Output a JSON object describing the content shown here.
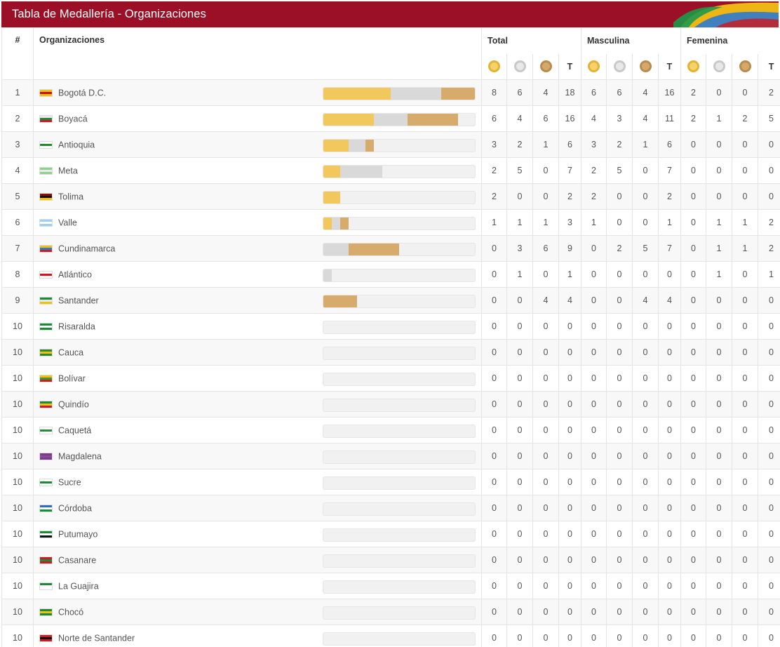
{
  "header": {
    "title": "Tabla de Medallería - Organizaciones"
  },
  "columns": {
    "rank": "#",
    "org": "Organizaciones",
    "groups": [
      "Total",
      "Masculina",
      "Femenina"
    ],
    "total_label": "T",
    "medal_icons": [
      "gold-medal-icon",
      "silver-medal-icon",
      "bronze-medal-icon"
    ]
  },
  "colors": {
    "brand": "#9c1027",
    "gold": "#f2c85c",
    "silver": "#d9d9d9",
    "bronze": "#d7ab6b"
  },
  "bar_max": 18,
  "rows": [
    {
      "rank": "1",
      "name": "Bogotá D.C.",
      "flag": [
        "#f2c014",
        "#c7101b",
        "#f2c014"
      ],
      "total": [
        "8",
        "6",
        "4",
        "18"
      ],
      "masc": [
        "6",
        "6",
        "4",
        "16"
      ],
      "fem": [
        "2",
        "0",
        "0",
        "2"
      ]
    },
    {
      "rank": "2",
      "name": "Boyacá",
      "flag": [
        "#e9e9e9",
        "#1e8a3a",
        "#c81d25"
      ],
      "total": [
        "6",
        "4",
        "6",
        "16"
      ],
      "masc": [
        "4",
        "3",
        "4",
        "11"
      ],
      "fem": [
        "2",
        "1",
        "2",
        "5"
      ]
    },
    {
      "rank": "3",
      "name": "Antioquia",
      "flag": [
        "#ffffff",
        "#1a8f2a",
        "#ffffff"
      ],
      "total": [
        "3",
        "2",
        "1",
        "6"
      ],
      "masc": [
        "3",
        "2",
        "1",
        "6"
      ],
      "fem": [
        "0",
        "0",
        "0",
        "0"
      ]
    },
    {
      "rank": "4",
      "name": "Meta",
      "flag": [
        "#8fcf8f",
        "#eaeaea",
        "#8fcf8f"
      ],
      "total": [
        "2",
        "5",
        "0",
        "7"
      ],
      "masc": [
        "2",
        "5",
        "0",
        "7"
      ],
      "fem": [
        "0",
        "0",
        "0",
        "0"
      ]
    },
    {
      "rank": "5",
      "name": "Tolima",
      "flag": [
        "#8a1010",
        "#111111",
        "#f2c014"
      ],
      "total": [
        "2",
        "0",
        "0",
        "2"
      ],
      "masc": [
        "2",
        "0",
        "0",
        "2"
      ],
      "fem": [
        "0",
        "0",
        "0",
        "0"
      ]
    },
    {
      "rank": "6",
      "name": "Valle",
      "flag": [
        "#9fd0ef",
        "#ffffff",
        "#9fd0ef"
      ],
      "total": [
        "1",
        "1",
        "1",
        "3"
      ],
      "masc": [
        "1",
        "0",
        "0",
        "1"
      ],
      "fem": [
        "0",
        "1",
        "1",
        "2"
      ]
    },
    {
      "rank": "7",
      "name": "Cundinamarca",
      "flag": [
        "#f2c014",
        "#2e7ad1",
        "#c81d25"
      ],
      "total": [
        "0",
        "3",
        "6",
        "9"
      ],
      "masc": [
        "0",
        "2",
        "5",
        "7"
      ],
      "fem": [
        "0",
        "1",
        "1",
        "2"
      ]
    },
    {
      "rank": "8",
      "name": "Atlántico",
      "flag": [
        "#ffffff",
        "#d4141e",
        "#ffffff"
      ],
      "total": [
        "0",
        "1",
        "0",
        "1"
      ],
      "masc": [
        "0",
        "0",
        "0",
        "0"
      ],
      "fem": [
        "0",
        "1",
        "0",
        "1"
      ]
    },
    {
      "rank": "9",
      "name": "Santander",
      "flag": [
        "#1d8a38",
        "#e8e8e8",
        "#f2c014"
      ],
      "total": [
        "0",
        "0",
        "4",
        "4"
      ],
      "masc": [
        "0",
        "0",
        "4",
        "4"
      ],
      "fem": [
        "0",
        "0",
        "0",
        "0"
      ]
    },
    {
      "rank": "10",
      "name": "Risaralda",
      "flag": [
        "#1d8a38",
        "#ffffff",
        "#1d8a38"
      ],
      "total": [
        "0",
        "0",
        "0",
        "0"
      ],
      "masc": [
        "0",
        "0",
        "0",
        "0"
      ],
      "fem": [
        "0",
        "0",
        "0",
        "0"
      ]
    },
    {
      "rank": "10",
      "name": "Cauca",
      "flag": [
        "#2a8a2a",
        "#f2c014",
        "#2a8a2a"
      ],
      "total": [
        "0",
        "0",
        "0",
        "0"
      ],
      "masc": [
        "0",
        "0",
        "0",
        "0"
      ],
      "fem": [
        "0",
        "0",
        "0",
        "0"
      ]
    },
    {
      "rank": "10",
      "name": "Bolívar",
      "flag": [
        "#f2c014",
        "#3e9a2a",
        "#c81d25"
      ],
      "total": [
        "0",
        "0",
        "0",
        "0"
      ],
      "masc": [
        "0",
        "0",
        "0",
        "0"
      ],
      "fem": [
        "0",
        "0",
        "0",
        "0"
      ]
    },
    {
      "rank": "10",
      "name": "Quindío",
      "flag": [
        "#1d8a38",
        "#f2c014",
        "#c81d25"
      ],
      "total": [
        "0",
        "0",
        "0",
        "0"
      ],
      "masc": [
        "0",
        "0",
        "0",
        "0"
      ],
      "fem": [
        "0",
        "0",
        "0",
        "0"
      ]
    },
    {
      "rank": "10",
      "name": "Caquetá",
      "flag": [
        "#ffffff",
        "#2e8a3a",
        "#ffffff"
      ],
      "total": [
        "0",
        "0",
        "0",
        "0"
      ],
      "masc": [
        "0",
        "0",
        "0",
        "0"
      ],
      "fem": [
        "0",
        "0",
        "0",
        "0"
      ]
    },
    {
      "rank": "10",
      "name": "Magdalena",
      "flag": [
        "#7a3b8a",
        "#8a4a9a",
        "#7a3b8a"
      ],
      "total": [
        "0",
        "0",
        "0",
        "0"
      ],
      "masc": [
        "0",
        "0",
        "0",
        "0"
      ],
      "fem": [
        "0",
        "0",
        "0",
        "0"
      ]
    },
    {
      "rank": "10",
      "name": "Sucre",
      "flag": [
        "#ffffff",
        "#1d8a38",
        "#ffffff"
      ],
      "total": [
        "0",
        "0",
        "0",
        "0"
      ],
      "masc": [
        "0",
        "0",
        "0",
        "0"
      ],
      "fem": [
        "0",
        "0",
        "0",
        "0"
      ]
    },
    {
      "rank": "10",
      "name": "Córdoba",
      "flag": [
        "#2e6fb8",
        "#ffffff",
        "#1d8a38"
      ],
      "total": [
        "0",
        "0",
        "0",
        "0"
      ],
      "masc": [
        "0",
        "0",
        "0",
        "0"
      ],
      "fem": [
        "0",
        "0",
        "0",
        "0"
      ]
    },
    {
      "rank": "10",
      "name": "Putumayo",
      "flag": [
        "#1d8a38",
        "#ffffff",
        "#111111"
      ],
      "total": [
        "0",
        "0",
        "0",
        "0"
      ],
      "masc": [
        "0",
        "0",
        "0",
        "0"
      ],
      "fem": [
        "0",
        "0",
        "0",
        "0"
      ]
    },
    {
      "rank": "10",
      "name": "Casanare",
      "flag": [
        "#c81d25",
        "#1d8a38",
        "#c81d25"
      ],
      "total": [
        "0",
        "0",
        "0",
        "0"
      ],
      "masc": [
        "0",
        "0",
        "0",
        "0"
      ],
      "fem": [
        "0",
        "0",
        "0",
        "0"
      ]
    },
    {
      "rank": "10",
      "name": "La Guajira",
      "flag": [
        "#1d8a38",
        "#ffffff",
        "#ffffff"
      ],
      "total": [
        "0",
        "0",
        "0",
        "0"
      ],
      "masc": [
        "0",
        "0",
        "0",
        "0"
      ],
      "fem": [
        "0",
        "0",
        "0",
        "0"
      ]
    },
    {
      "rank": "10",
      "name": "Chocó",
      "flag": [
        "#1d8a38",
        "#f2c014",
        "#1d8a38"
      ],
      "total": [
        "0",
        "0",
        "0",
        "0"
      ],
      "masc": [
        "0",
        "0",
        "0",
        "0"
      ],
      "fem": [
        "0",
        "0",
        "0",
        "0"
      ]
    },
    {
      "rank": "10",
      "name": "Norte de Santander",
      "flag": [
        "#c81d25",
        "#111111",
        "#c81d25"
      ],
      "total": [
        "0",
        "0",
        "0",
        "0"
      ],
      "masc": [
        "0",
        "0",
        "0",
        "0"
      ],
      "fem": [
        "0",
        "0",
        "0",
        "0"
      ]
    }
  ]
}
